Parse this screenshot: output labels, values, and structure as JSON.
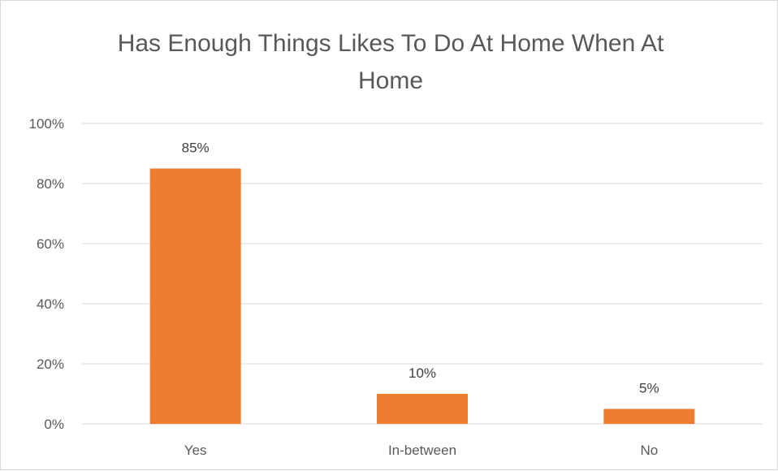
{
  "chart_data": {
    "type": "bar",
    "title": "Has Enough Things Likes To Do At Home When At Home",
    "xlabel": "",
    "ylabel": "",
    "categories": [
      "Yes",
      "In-between",
      "No"
    ],
    "values": [
      0.85,
      0.1,
      0.05
    ],
    "data_labels": [
      "85%",
      "10%",
      "5%"
    ],
    "ylim": [
      0,
      1
    ],
    "yticks": [
      0,
      0.2,
      0.4,
      0.6,
      0.8,
      1.0
    ],
    "ytick_labels": [
      "0%",
      "20%",
      "40%",
      "60%",
      "80%",
      "100%"
    ],
    "grid": true,
    "legend": "none",
    "colors": {
      "bar": "#ED7D31",
      "grid": "#D9D9D9",
      "axis_text": "#595959"
    }
  }
}
